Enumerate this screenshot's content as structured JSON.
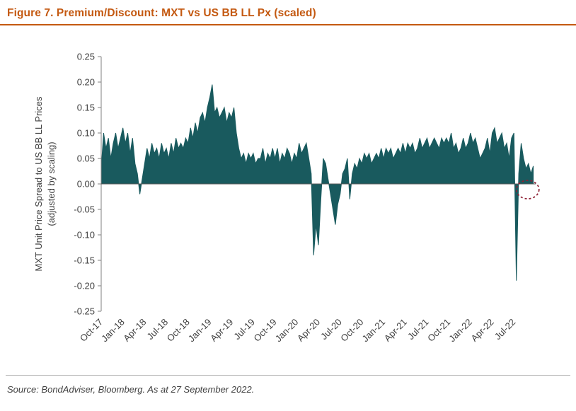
{
  "figure": {
    "title": "Figure 7. Premium/Discount: MXT vs US BB LL Px (scaled)",
    "source": "Source: BondAdviser, Bloomberg. As at 27 September 2022."
  },
  "chart_data": {
    "type": "area",
    "title": "Premium/Discount: MXT vs US BB LL Px (scaled)",
    "ylabel_line1": "MXT Unit Price Spread to US BB LL Prices",
    "ylabel_line2": "(adjusted by scaling)",
    "xlabel": "",
    "ylim": [
      -0.25,
      0.25
    ],
    "ytick_step": 0.05,
    "y_tick_labels": [
      "0.25",
      "0.20",
      "0.15",
      "0.10",
      "0.05",
      "0.00",
      "-0.05",
      "-0.10",
      "-0.15",
      "-0.20",
      "-0.25"
    ],
    "x_tick_labels": [
      "Oct-17",
      "Jan-18",
      "Apr-18",
      "Jul-18",
      "Oct-18",
      "Jan-19",
      "Apr-19",
      "Jul-19",
      "Oct-19",
      "Jan-20",
      "Apr-20",
      "Jul-20",
      "Oct-20",
      "Jan-21",
      "Apr-21",
      "Jul-21",
      "Oct-21",
      "Jan-22",
      "Apr-22",
      "Jul-22"
    ],
    "x_domain_months": 60,
    "points_per_month": 3,
    "series_name": "MXT unit price spread (premium/discount)",
    "grid": false,
    "legend": false,
    "area_color": "#195A5E",
    "zero_line_color": "#595959",
    "axis_color": "#808080",
    "text_color": "#404040",
    "annotation": {
      "type": "dashed-ellipse",
      "color": "#8E1F33",
      "note": "latest spread near zero circled"
    },
    "values": [
      0.03,
      0.1,
      0.07,
      0.09,
      0.05,
      0.08,
      0.1,
      0.07,
      0.09,
      0.11,
      0.08,
      0.1,
      0.06,
      0.09,
      0.04,
      0.02,
      -0.02,
      0.01,
      0.04,
      0.07,
      0.05,
      0.08,
      0.06,
      0.07,
      0.05,
      0.08,
      0.06,
      0.07,
      0.05,
      0.08,
      0.06,
      0.09,
      0.07,
      0.08,
      0.07,
      0.09,
      0.08,
      0.11,
      0.09,
      0.12,
      0.1,
      0.13,
      0.14,
      0.12,
      0.15,
      0.17,
      0.195,
      0.14,
      0.15,
      0.13,
      0.14,
      0.15,
      0.12,
      0.14,
      0.13,
      0.15,
      0.1,
      0.07,
      0.05,
      0.06,
      0.04,
      0.06,
      0.05,
      0.06,
      0.04,
      0.05,
      0.05,
      0.07,
      0.04,
      0.06,
      0.05,
      0.07,
      0.05,
      0.07,
      0.04,
      0.06,
      0.05,
      0.07,
      0.06,
      0.04,
      0.06,
      0.05,
      0.08,
      0.06,
      0.07,
      0.08,
      0.05,
      0.02,
      -0.14,
      -0.08,
      -0.12,
      -0.03,
      0.05,
      0.04,
      0.01,
      -0.02,
      -0.05,
      -0.08,
      -0.04,
      -0.02,
      0.02,
      0.03,
      0.05,
      -0.03,
      0.02,
      0.04,
      0.03,
      0.05,
      0.04,
      0.06,
      0.05,
      0.06,
      0.04,
      0.05,
      0.06,
      0.05,
      0.07,
      0.05,
      0.07,
      0.06,
      0.07,
      0.05,
      0.06,
      0.07,
      0.06,
      0.08,
      0.06,
      0.08,
      0.07,
      0.08,
      0.06,
      0.07,
      0.09,
      0.07,
      0.08,
      0.09,
      0.07,
      0.08,
      0.09,
      0.08,
      0.07,
      0.09,
      0.08,
      0.09,
      0.08,
      0.1,
      0.07,
      0.08,
      0.06,
      0.07,
      0.09,
      0.07,
      0.08,
      0.1,
      0.08,
      0.09,
      0.07,
      0.05,
      0.06,
      0.07,
      0.09,
      0.06,
      0.1,
      0.11,
      0.08,
      0.09,
      0.1,
      0.07,
      0.08,
      0.05,
      0.09,
      0.1,
      -0.19,
      0.02,
      0.08,
      0.05,
      0.03,
      0.04,
      0.02,
      0.035
    ]
  }
}
